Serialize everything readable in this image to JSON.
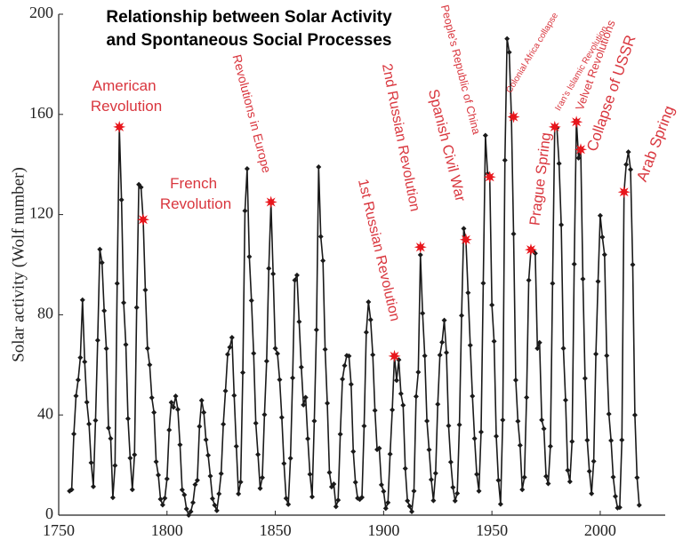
{
  "chart_data": {
    "type": "line",
    "title": [
      "Relationship between Solar Activity",
      "and Spontaneous Social Processes"
    ],
    "y_label": "Solar activity (Wolf number)",
    "xlim": [
      1750,
      2030
    ],
    "xticks": [
      1750,
      1800,
      1850,
      1900,
      1950,
      2000
    ],
    "ylim": [
      0,
      200
    ],
    "yticks": [
      0,
      40,
      80,
      120,
      160,
      200
    ],
    "series": [
      {
        "color": "#1a1a1a",
        "x": [
          1755,
          1756,
          1757,
          1758,
          1759,
          1760,
          1761,
          1762,
          1763,
          1764,
          1765,
          1766,
          1767,
          1768,
          1769,
          1770,
          1771,
          1772,
          1773,
          1774,
          1775,
          1776,
          1777,
          1778,
          1779,
          1780,
          1781,
          1782,
          1783,
          1784,
          1785,
          1786,
          1787,
          1788,
          1789,
          1790,
          1791,
          1792,
          1793,
          1794,
          1795,
          1796,
          1797,
          1798,
          1799,
          1800,
          1801,
          1802,
          1803,
          1804,
          1805,
          1806,
          1807,
          1808,
          1809,
          1810,
          1811,
          1812,
          1813,
          1814,
          1815,
          1816,
          1817,
          1818,
          1819,
          1820,
          1821,
          1822,
          1823,
          1824,
          1825,
          1826,
          1827,
          1828,
          1829,
          1830,
          1831,
          1832,
          1833,
          1834,
          1835,
          1836,
          1837,
          1838,
          1839,
          1840,
          1841,
          1842,
          1843,
          1844,
          1845,
          1846,
          1847,
          1848,
          1849,
          1850,
          1851,
          1852,
          1853,
          1854,
          1855,
          1856,
          1857,
          1858,
          1859,
          1860,
          1861,
          1862,
          1863,
          1864,
          1865,
          1866,
          1867,
          1868,
          1869,
          1870,
          1871,
          1872,
          1873,
          1874,
          1875,
          1876,
          1877,
          1878,
          1879,
          1880,
          1881,
          1882,
          1883,
          1884,
          1885,
          1886,
          1887,
          1888,
          1889,
          1890,
          1891,
          1892,
          1893,
          1894,
          1895,
          1896,
          1897,
          1898,
          1899,
          1900,
          1901,
          1902,
          1903,
          1904,
          1905,
          1906,
          1907,
          1908,
          1909,
          1910,
          1911,
          1912,
          1913,
          1914,
          1915,
          1916,
          1917,
          1918,
          1919,
          1920,
          1921,
          1922,
          1923,
          1924,
          1925,
          1926,
          1927,
          1928,
          1929,
          1930,
          1931,
          1932,
          1933,
          1934,
          1935,
          1936,
          1937,
          1938,
          1939,
          1940,
          1941,
          1942,
          1943,
          1944,
          1945,
          1946,
          1947,
          1948,
          1949,
          1950,
          1951,
          1952,
          1953,
          1954,
          1955,
          1956,
          1957,
          1958,
          1959,
          1960,
          1961,
          1962,
          1963,
          1964,
          1965,
          1966,
          1967,
          1968,
          1969,
          1970,
          1971,
          1972,
          1973,
          1974,
          1975,
          1976,
          1977,
          1978,
          1979,
          1980,
          1981,
          1982,
          1983,
          1984,
          1985,
          1986,
          1987,
          1988,
          1989,
          1990,
          1991,
          1992,
          1993,
          1994,
          1995,
          1996,
          1997,
          1998,
          1999,
          2000,
          2001,
          2002,
          2003,
          2004,
          2005,
          2006,
          2007,
          2008,
          2009,
          2010,
          2011,
          2012,
          2013,
          2014,
          2015,
          2016,
          2017,
          2018
        ],
        "values": [
          9.6,
          10.2,
          32.4,
          47.6,
          54.0,
          62.9,
          85.9,
          61.2,
          45.1,
          36.4,
          20.9,
          11.4,
          37.8,
          69.8,
          106.1,
          100.8,
          81.6,
          66.5,
          34.8,
          30.6,
          7.0,
          19.8,
          92.5,
          154.4,
          125.9,
          84.8,
          68.1,
          38.5,
          22.8,
          10.2,
          24.1,
          82.9,
          132.0,
          130.9,
          118.1,
          89.9,
          66.6,
          60.0,
          46.9,
          41.0,
          21.3,
          16.0,
          6.4,
          4.1,
          6.8,
          14.5,
          34.0,
          45.0,
          43.1,
          47.5,
          42.2,
          28.1,
          10.1,
          8.1,
          2.5,
          0.0,
          1.4,
          5.0,
          12.2,
          13.9,
          35.4,
          45.8,
          41.0,
          30.1,
          23.9,
          15.6,
          6.6,
          4.0,
          1.8,
          8.5,
          16.6,
          36.3,
          49.6,
          64.2,
          67.0,
          70.9,
          47.8,
          27.5,
          8.5,
          13.2,
          56.9,
          121.5,
          138.3,
          103.2,
          85.7,
          64.6,
          36.7,
          24.2,
          10.7,
          15.0,
          40.1,
          61.5,
          98.5,
          124.7,
          96.3,
          66.6,
          64.5,
          54.1,
          39.0,
          20.6,
          6.7,
          4.3,
          22.7,
          54.8,
          93.8,
          95.8,
          77.2,
          59.1,
          44.0,
          47.0,
          30.5,
          16.3,
          7.3,
          37.6,
          74.0,
          139.0,
          111.2,
          101.6,
          66.2,
          44.7,
          17.0,
          11.3,
          12.4,
          3.4,
          6.0,
          32.3,
          54.3,
          59.7,
          63.7,
          63.5,
          52.2,
          25.4,
          13.1,
          6.8,
          6.3,
          7.1,
          35.6,
          73.0,
          85.1,
          78.0,
          64.0,
          41.8,
          26.2,
          26.7,
          12.1,
          9.5,
          2.7,
          5.0,
          24.4,
          42.0,
          63.5,
          53.8,
          62.0,
          48.5,
          43.9,
          18.6,
          5.7,
          3.6,
          1.4,
          9.6,
          47.4,
          57.1,
          103.9,
          80.6,
          63.6,
          37.6,
          26.1,
          14.2,
          5.8,
          16.7,
          44.3,
          63.9,
          69.0,
          77.8,
          64.9,
          35.7,
          21.2,
          11.1,
          5.7,
          8.7,
          36.1,
          79.7,
          114.4,
          109.6,
          88.8,
          67.8,
          47.5,
          30.6,
          16.3,
          9.6,
          33.2,
          92.6,
          151.6,
          136.3,
          134.7,
          83.9,
          69.4,
          31.5,
          13.9,
          4.4,
          38.0,
          141.7,
          190.2,
          184.8,
          159.0,
          112.3,
          53.9,
          37.5,
          27.9,
          10.2,
          15.1,
          47.0,
          93.8,
          105.9,
          105.5,
          104.5,
          66.6,
          68.9,
          38.0,
          34.5,
          15.5,
          12.6,
          27.5,
          92.5,
          155.4,
          154.6,
          140.4,
          115.9,
          66.6,
          45.9,
          17.9,
          13.4,
          29.4,
          100.2,
          157.6,
          142.6,
          145.7,
          94.3,
          54.6,
          29.9,
          17.5,
          8.6,
          21.5,
          64.3,
          93.3,
          119.6,
          111.0,
          104.0,
          63.7,
          40.4,
          29.8,
          15.2,
          7.5,
          2.9,
          3.1,
          30,
          129,
          140,
          145,
          138,
          100,
          40,
          15,
          4
        ]
      }
    ],
    "annotations": [
      {
        "text": "American Revolution",
        "x": 1778,
        "y": 155,
        "color": "#e8161c"
      },
      {
        "text": "French Revolution",
        "x": 1789,
        "y": 118,
        "color": "#e8161c"
      },
      {
        "text": "Revolutions in Europe",
        "x": 1848,
        "y": 125,
        "color": "#e8161c"
      },
      {
        "text": "1st Russian Revolution",
        "x": 1905,
        "y": 63.5,
        "color": "#e8161c"
      },
      {
        "text": "2nd Russian Revolution",
        "x": 1917,
        "y": 107,
        "color": "#e8161c"
      },
      {
        "text": "Spanish Civil War",
        "x": 1938,
        "y": 110,
        "color": "#e8161c"
      },
      {
        "text": "People's Republic of China",
        "x": 1949,
        "y": 135,
        "color": "#e8161c"
      },
      {
        "text": "Colonial Africa collapse",
        "x": 1960,
        "y": 159,
        "color": "#e8161c"
      },
      {
        "text": "Prague Spring",
        "x": 1968,
        "y": 106,
        "color": "#e8161c"
      },
      {
        "text": "Iran's Islamic Revolution",
        "x": 1979,
        "y": 155,
        "color": "#e8161c"
      },
      {
        "text": "Velvet Revolutions",
        "x": 1989,
        "y": 157,
        "color": "#e8161c"
      },
      {
        "text": "Collapse of USSR",
        "x": 1991,
        "y": 146,
        "color": "#e8161c"
      },
      {
        "text": "Arab Spring",
        "x": 2011,
        "y": 129,
        "color": "#e8161c"
      }
    ]
  }
}
